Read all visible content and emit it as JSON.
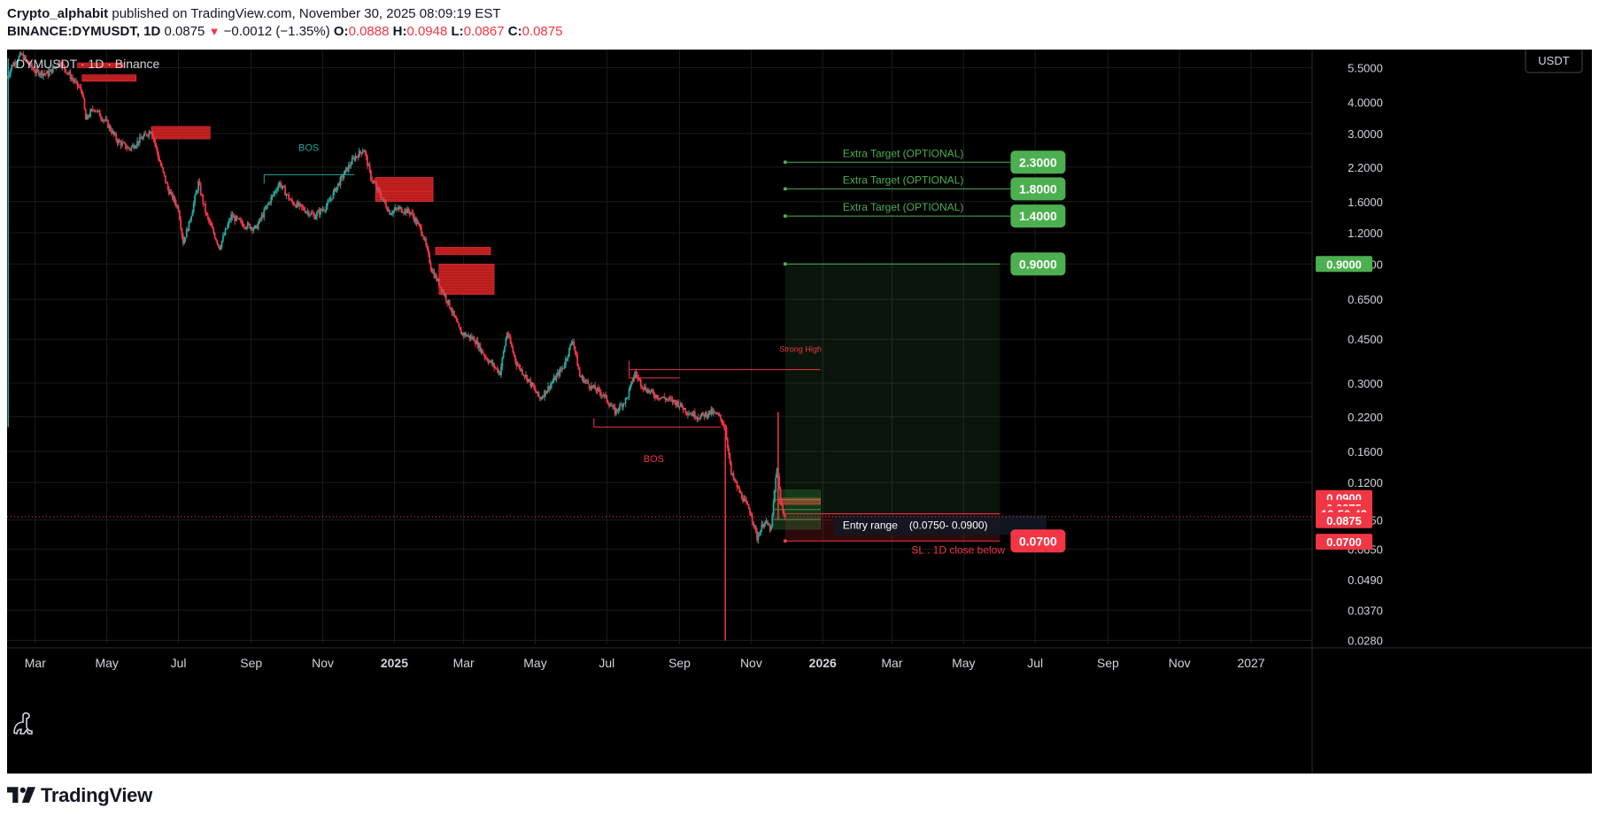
{
  "header": {
    "author": "Crypto_alphabit",
    "published_text": "published on TradingView.com, November 30, 2025 08:09:19 EST",
    "symbol_full": "BINANCE:DYMUSDT, 1D",
    "last": "0.0875",
    "change_arrow": "▼",
    "change": "−0.0012 (−1.35%)",
    "open_label": "O:",
    "open": "0.0888",
    "high_label": "H:",
    "high": "0.0948",
    "low_label": "L:",
    "low": "0.0867",
    "close_label": "C:",
    "close": "0.0875"
  },
  "legend": {
    "text": "DYMUSDT · 1D · Binance"
  },
  "currency_button": "USDT",
  "footer": {
    "brand": "TradingView",
    "logo_icon": "tradingview-logo-icon"
  },
  "chart_data": {
    "type": "candlestick",
    "symbol": "DYMUSDT",
    "interval": "1D",
    "exchange": "Binance",
    "y_scale": "log",
    "ylim": [
      0.027,
      6.5
    ],
    "y_ticks": [
      "5.5000",
      "4.0000",
      "3.0000",
      "2.2000",
      "1.6000",
      "1.2000",
      "0.9000",
      "0.6500",
      "0.4500",
      "0.3000",
      "0.2200",
      "0.1600",
      "0.1200",
      "0.0850",
      "0.0650",
      "0.0490",
      "0.0370",
      "0.0280"
    ],
    "x_ticks": [
      {
        "label": "Mar",
        "date": "2024-03-01"
      },
      {
        "label": "May",
        "date": "2024-05-01"
      },
      {
        "label": "Jul",
        "date": "2024-07-01"
      },
      {
        "label": "Sep",
        "date": "2024-09-01"
      },
      {
        "label": "Nov",
        "date": "2024-11-01"
      },
      {
        "label": "2025",
        "date": "2025-01-01",
        "bold": true
      },
      {
        "label": "Mar",
        "date": "2025-03-01"
      },
      {
        "label": "May",
        "date": "2025-05-01"
      },
      {
        "label": "Jul",
        "date": "2025-07-01"
      },
      {
        "label": "Sep",
        "date": "2025-09-01"
      },
      {
        "label": "Nov",
        "date": "2025-11-01"
      },
      {
        "label": "2026",
        "date": "2026-01-01",
        "bold": true
      },
      {
        "label": "Mar",
        "date": "2026-03-01"
      },
      {
        "label": "May",
        "date": "2026-05-01"
      },
      {
        "label": "Jul",
        "date": "2026-07-01"
      },
      {
        "label": "Sep",
        "date": "2026-09-01"
      },
      {
        "label": "Nov",
        "date": "2026-11-01"
      },
      {
        "label": "2027",
        "date": "2027-01-01"
      }
    ],
    "x_range": [
      "2024-02-06",
      "2027-02-22"
    ],
    "price_path": [
      [
        "2024-02-06",
        5.0
      ],
      [
        "2024-02-10",
        5.6
      ],
      [
        "2024-02-18",
        6.2
      ],
      [
        "2024-03-01",
        5.3
      ],
      [
        "2024-03-12",
        5.2
      ],
      [
        "2024-03-22",
        5.8
      ],
      [
        "2024-04-01",
        5.0
      ],
      [
        "2024-04-10",
        4.4
      ],
      [
        "2024-04-13",
        3.4
      ],
      [
        "2024-04-20",
        3.8
      ],
      [
        "2024-05-01",
        3.3
      ],
      [
        "2024-05-10",
        2.8
      ],
      [
        "2024-05-20",
        2.6
      ],
      [
        "2024-06-01",
        2.9
      ],
      [
        "2024-06-08",
        3.1
      ],
      [
        "2024-06-14",
        2.4
      ],
      [
        "2024-06-22",
        1.8
      ],
      [
        "2024-07-01",
        1.5
      ],
      [
        "2024-07-05",
        1.1
      ],
      [
        "2024-07-10",
        1.3
      ],
      [
        "2024-07-18",
        1.9
      ],
      [
        "2024-07-25",
        1.4
      ],
      [
        "2024-08-05",
        1.05
      ],
      [
        "2024-08-15",
        1.4
      ],
      [
        "2024-08-25",
        1.3
      ],
      [
        "2024-09-05",
        1.25
      ],
      [
        "2024-09-15",
        1.55
      ],
      [
        "2024-09-25",
        1.9
      ],
      [
        "2024-10-05",
        1.6
      ],
      [
        "2024-10-15",
        1.5
      ],
      [
        "2024-10-25",
        1.4
      ],
      [
        "2024-11-05",
        1.55
      ],
      [
        "2024-11-12",
        1.8
      ],
      [
        "2024-11-20",
        2.1
      ],
      [
        "2024-11-28",
        2.4
      ],
      [
        "2024-12-06",
        2.6
      ],
      [
        "2024-12-12",
        2.0
      ],
      [
        "2024-12-20",
        1.7
      ],
      [
        "2024-12-28",
        1.45
      ],
      [
        "2025-01-05",
        1.5
      ],
      [
        "2025-01-15",
        1.45
      ],
      [
        "2025-01-25",
        1.2
      ],
      [
        "2025-02-02",
        0.85
      ],
      [
        "2025-02-10",
        0.72
      ],
      [
        "2025-02-18",
        0.6
      ],
      [
        "2025-02-26",
        0.48
      ],
      [
        "2025-03-10",
        0.45
      ],
      [
        "2025-03-20",
        0.38
      ],
      [
        "2025-04-01",
        0.33
      ],
      [
        "2025-04-07",
        0.48
      ],
      [
        "2025-04-15",
        0.36
      ],
      [
        "2025-04-25",
        0.31
      ],
      [
        "2025-05-05",
        0.26
      ],
      [
        "2025-05-15",
        0.3
      ],
      [
        "2025-05-25",
        0.35
      ],
      [
        "2025-06-02",
        0.45
      ],
      [
        "2025-06-08",
        0.32
      ],
      [
        "2025-06-18",
        0.29
      ],
      [
        "2025-06-28",
        0.27
      ],
      [
        "2025-07-08",
        0.23
      ],
      [
        "2025-07-18",
        0.26
      ],
      [
        "2025-07-25",
        0.33
      ],
      [
        "2025-08-01",
        0.29
      ],
      [
        "2025-08-10",
        0.27
      ],
      [
        "2025-08-20",
        0.26
      ],
      [
        "2025-08-30",
        0.25
      ],
      [
        "2025-09-08",
        0.23
      ],
      [
        "2025-09-18",
        0.22
      ],
      [
        "2025-09-28",
        0.23
      ],
      [
        "2025-10-05",
        0.22
      ],
      [
        "2025-10-10",
        0.2
      ],
      [
        "2025-10-15",
        0.13
      ],
      [
        "2025-10-22",
        0.11
      ],
      [
        "2025-11-01",
        0.09
      ],
      [
        "2025-11-06",
        0.072
      ],
      [
        "2025-11-12",
        0.084
      ],
      [
        "2025-11-18",
        0.078
      ],
      [
        "2025-11-23",
        0.14
      ],
      [
        "2025-11-26",
        0.1
      ],
      [
        "2025-11-30",
        0.0875
      ]
    ],
    "wicks": [
      {
        "date": "2024-02-07",
        "low": 0.2,
        "high": 6.0
      },
      {
        "date": "2025-10-10",
        "low": 0.028,
        "high": 0.2
      },
      {
        "date": "2025-11-24",
        "low": 0.085,
        "high": 0.23
      }
    ],
    "supply_zones": [
      {
        "from": "2024-04-06",
        "to": "2024-05-15",
        "low": 5.5,
        "high": 5.75
      },
      {
        "from": "2024-04-10",
        "to": "2024-05-26",
        "low": 4.85,
        "high": 5.15
      },
      {
        "from": "2024-06-08",
        "to": "2024-07-28",
        "low": 2.85,
        "high": 3.2
      },
      {
        "from": "2024-12-16",
        "to": "2025-02-03",
        "low": 1.75,
        "high": 2.0
      },
      {
        "from": "2024-12-16",
        "to": "2025-02-03",
        "low": 1.6,
        "high": 1.75
      },
      {
        "from": "2025-02-05",
        "to": "2025-03-24",
        "low": 0.98,
        "high": 1.05
      },
      {
        "from": "2025-02-08",
        "to": "2025-03-27",
        "low": 0.68,
        "high": 0.9
      },
      {
        "from": "2025-11-25",
        "to": "2025-12-30",
        "low": 0.098,
        "high": 0.104
      }
    ],
    "structure_lines": [
      {
        "label": "BOS",
        "color": "#26a69a",
        "from": "2024-09-12",
        "to": "2024-11-28",
        "price": 2.05,
        "label_date": "2024-10-20",
        "label_price": 2.55
      },
      {
        "label": "BOS",
        "color": "#f23645",
        "from": "2025-06-20",
        "to": "2025-10-06",
        "price": 0.2,
        "label_date": "2025-08-10",
        "label_price": 0.145
      },
      {
        "label": "Strong High",
        "color": "#f23645",
        "from": "2025-07-20",
        "to": "2025-12-30",
        "price": 0.34,
        "label_date": "2025-12-13",
        "label_price": 0.4
      },
      {
        "label": "",
        "color": "#f23645",
        "from": "2025-07-20",
        "to": "2025-09-01",
        "price": 0.315
      }
    ],
    "position": {
      "start": "2025-11-30",
      "end": "2026-06-01",
      "entry_range_label": "Entry range",
      "entry_range_values": "(0.0750- 0.0900)",
      "entry_low": 0.075,
      "entry_high": 0.09,
      "stop": 0.07,
      "stop_label": "SL . 1D close below",
      "target": 0.9,
      "target_label": "0.9000",
      "stop_badge": "0.0700"
    },
    "entry_box": {
      "from": "2025-11-20",
      "to": "2025-12-30",
      "low": 0.078,
      "high": 0.112
    },
    "extra_targets": [
      {
        "label": "Extra Target (OPTIONAL)",
        "price": 2.3,
        "value_text": "2.3000"
      },
      {
        "label": "Extra Target (OPTIONAL)",
        "price": 1.8,
        "value_text": "1.8000"
      },
      {
        "label": "Extra Target (OPTIONAL)",
        "price": 1.4,
        "value_text": "1.4000"
      }
    ],
    "price_scale_badges": [
      {
        "text": "0.9000",
        "price": 0.9,
        "color": "#4caf50"
      },
      {
        "text": "0.0900",
        "price": 0.104,
        "color": "#f23645"
      },
      {
        "text": "0.0875",
        "price": 0.095,
        "color": "#f23645"
      },
      {
        "text": "10:50:42",
        "price": 0.0898,
        "color": "#f23645"
      },
      {
        "text": "0.0875",
        "price": 0.0848,
        "color": "#f23645"
      },
      {
        "text": "0.0700",
        "price": 0.0695,
        "color": "#f23645"
      }
    ],
    "last_price_line": 0.0875,
    "colors": {
      "background": "#000000",
      "grid": "#1c1c1c",
      "up": "#26a69a",
      "down": "#f23645",
      "target": "#4caf50",
      "stop": "#f23645",
      "supply": "#b71c1c"
    }
  }
}
